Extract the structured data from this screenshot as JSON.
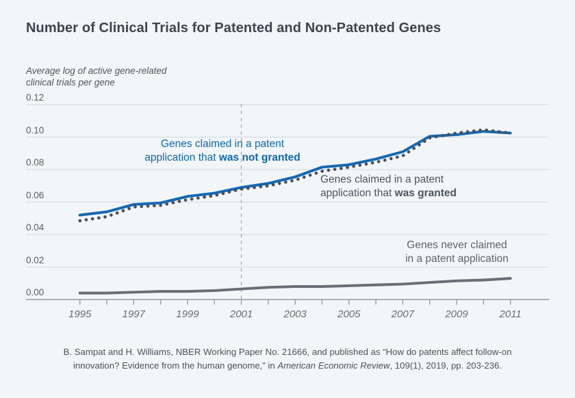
{
  "page": {
    "background": "#f2f6f9"
  },
  "header": {
    "title": "Number of Clinical Trials for Patented and Non-Patented Genes",
    "axis_title_line1": "Average log of active gene-related",
    "axis_title_line2": "clinical trials per gene"
  },
  "chart_data": {
    "type": "line",
    "title": "Number of Clinical Trials for Patented and Non-Patented Genes",
    "ylabel": "Average log of active gene-related clinical trials per gene",
    "xlabel": "",
    "grid": true,
    "legend_position": "in-plot annotations",
    "x": [
      1995,
      1996,
      1997,
      1998,
      1999,
      2000,
      2001,
      2002,
      2003,
      2004,
      2005,
      2006,
      2007,
      2008,
      2009,
      2010,
      2011
    ],
    "x_tick_years": [
      1995,
      1997,
      1999,
      2001,
      2003,
      2005,
      2007,
      2009,
      2011
    ],
    "x_tick_labels": [
      "1995",
      "1997",
      "1999",
      "2001",
      "2003",
      "2005",
      "2007",
      "2009",
      "2011"
    ],
    "ylim": [
      0,
      0.12
    ],
    "y_ticks": [
      0,
      0.02,
      0.04,
      0.06,
      0.08,
      0.1,
      0.12
    ],
    "y_tick_labels": [
      "0.00",
      "0.02",
      "0.04",
      "0.06",
      "0.08",
      "0.10",
      "0.12"
    ],
    "reference_line": {
      "x": 2001,
      "style": "dashed"
    },
    "series": [
      {
        "name": "Genes claimed in a patent application that was not granted",
        "style": "solid",
        "color": "#1568b2",
        "values": [
          0.052,
          0.054,
          0.0585,
          0.0595,
          0.0635,
          0.0655,
          0.069,
          0.0715,
          0.0755,
          0.0815,
          0.083,
          0.0865,
          0.091,
          0.1005,
          0.1015,
          0.1035,
          0.1025
        ]
      },
      {
        "name": "Genes claimed in a patent application that was granted",
        "style": "dotted",
        "color": "#4a4f57",
        "values": [
          0.0485,
          0.051,
          0.057,
          0.058,
          0.0615,
          0.064,
          0.068,
          0.07,
          0.0735,
          0.079,
          0.0815,
          0.0845,
          0.0885,
          0.0995,
          0.1025,
          0.1045,
          0.1025
        ]
      },
      {
        "name": "Genes never claimed in a patent application",
        "style": "solid",
        "color": "#686e76",
        "values": [
          0.004,
          0.004,
          0.0045,
          0.005,
          0.005,
          0.0055,
          0.0065,
          0.0075,
          0.008,
          0.008,
          0.0085,
          0.009,
          0.0095,
          0.0105,
          0.0115,
          0.012,
          0.013
        ]
      }
    ],
    "colors": {
      "gridline": "#d8dde2",
      "axis": "#959ca4",
      "dashed_reference": "#a8afb5"
    }
  },
  "annotations": {
    "not_granted": {
      "line1": "Genes claimed in a patent",
      "line2_text": "application that ",
      "line2_bold": "was not granted"
    },
    "granted": {
      "line1": "Genes claimed in a patent",
      "line2_text": "application that ",
      "line2_bold": "was granted"
    },
    "never_claimed": {
      "line1": "Genes never claimed",
      "line2": "in a patent application"
    }
  },
  "footer": {
    "citation_part1": "B. Sampat and H. Williams, NBER Working Paper No. 21666, and published as “How do patents affect follow-on innovation? Evidence from the human genome,” in ",
    "citation_journal": "American Economic Review",
    "citation_part2": ", 109(1), 2019, pp. 203-236."
  }
}
